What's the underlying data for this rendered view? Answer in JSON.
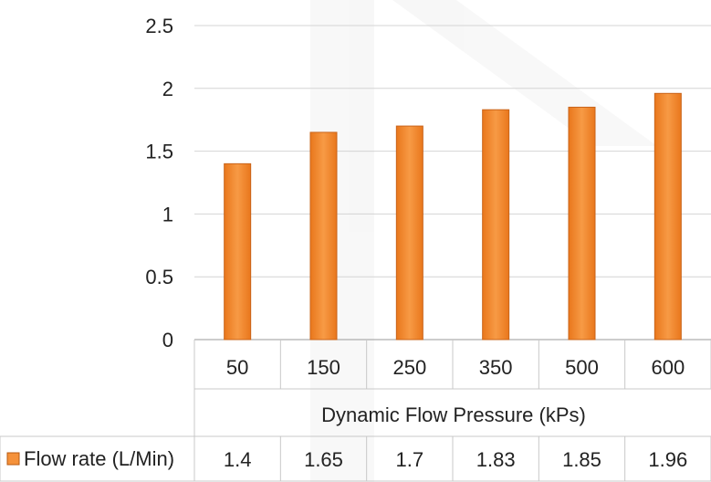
{
  "chart_data": {
    "type": "bar",
    "xlabel": "Dynamic Flow Pressure (kPs)",
    "ylabel": "",
    "categories": [
      "50",
      "150",
      "250",
      "350",
      "500",
      "600"
    ],
    "series": [
      {
        "name": "Flow rate (L/Min)",
        "values": [
          1.4,
          1.65,
          1.7,
          1.83,
          1.85,
          1.96
        ],
        "color": "#F5913A"
      }
    ],
    "ylim": [
      0,
      2.5
    ],
    "yticks": [
      "0",
      "0.5",
      "1",
      "1.5",
      "2",
      "2.5"
    ],
    "data_table": {
      "series_label": "Flow rate (L/Min)",
      "values": [
        "1.4",
        "1.65",
        "1.7",
        "1.83",
        "1.85",
        "1.96"
      ]
    },
    "grid": true,
    "legend": "in data table, left of values"
  }
}
